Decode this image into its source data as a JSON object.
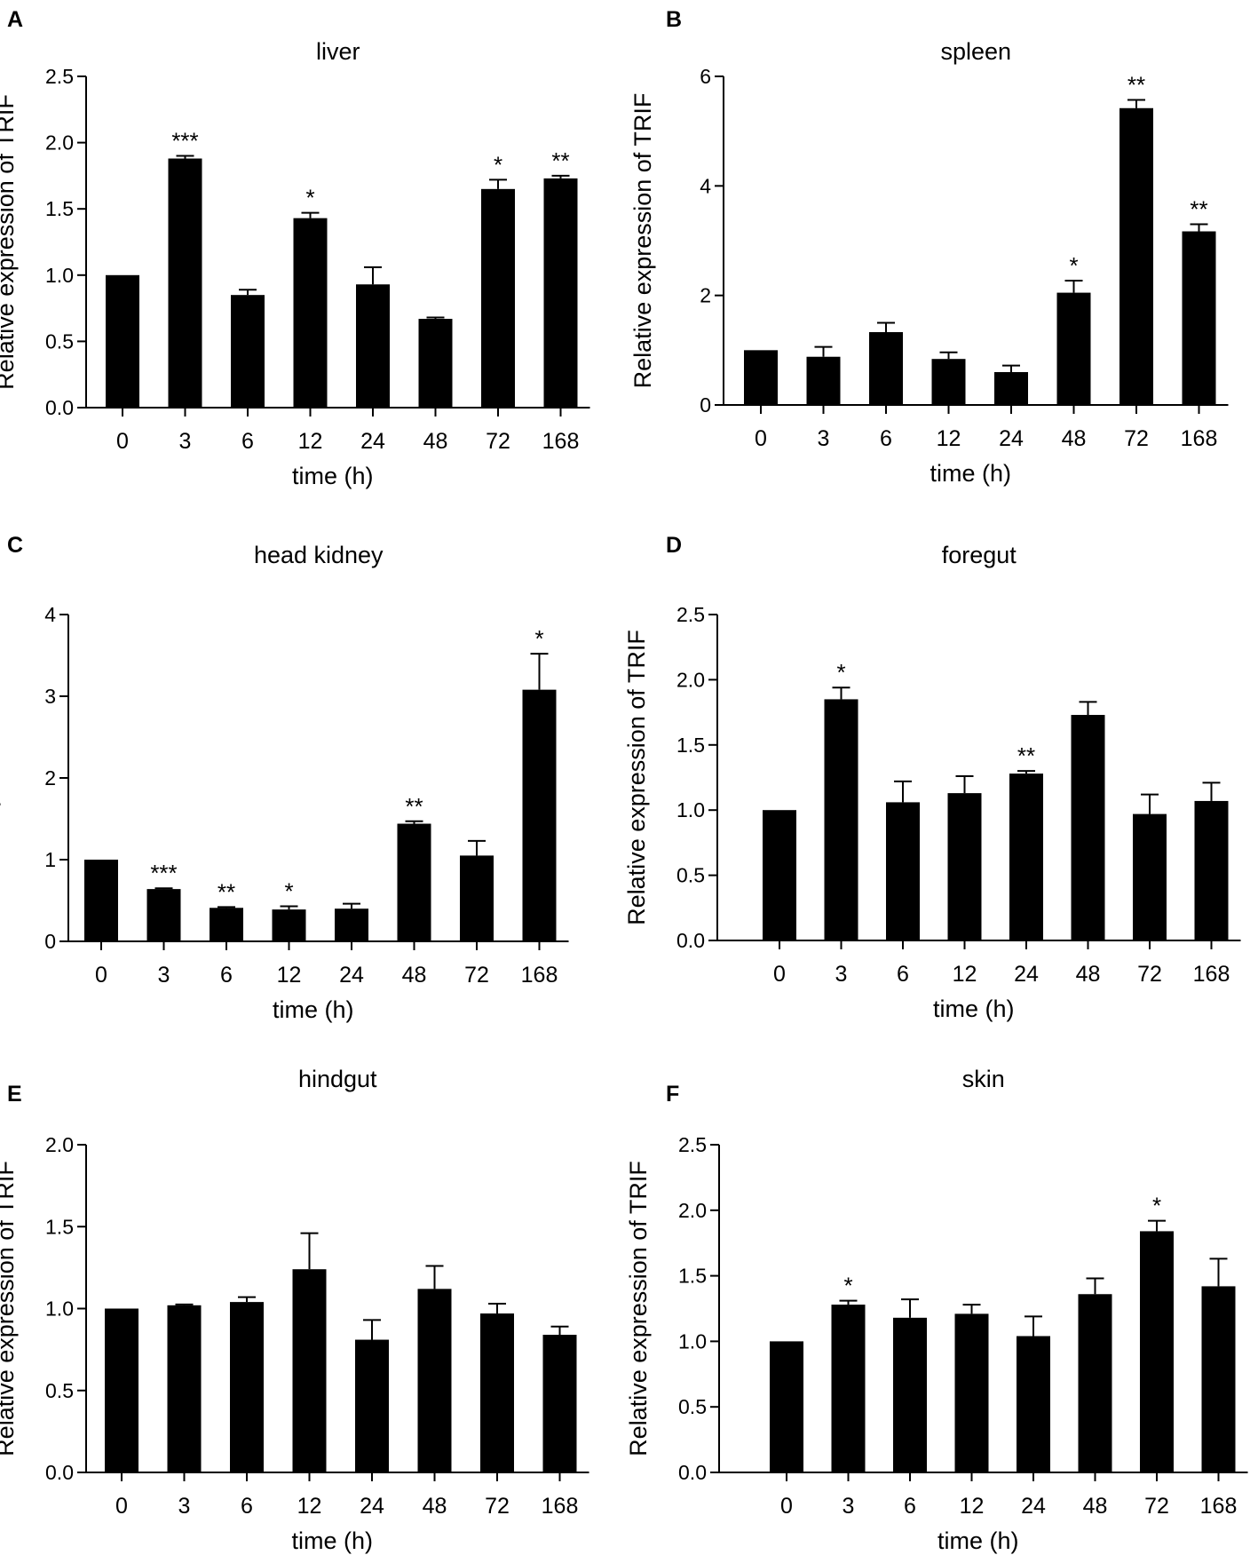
{
  "figure": {
    "bar_color": "#000000",
    "axis_color": "#000000",
    "background": "#ffffff"
  },
  "chart_data": [
    {
      "panel_label": "A",
      "type": "bar",
      "title": "liver",
      "xlabel": "time (h)",
      "ylabel": "Relative expression of TRIF",
      "categories": [
        "0",
        "3",
        "6",
        "12",
        "24",
        "48",
        "72",
        "168"
      ],
      "values": [
        1.0,
        1.88,
        0.85,
        1.43,
        0.93,
        0.67,
        1.65,
        1.73
      ],
      "errors": [
        0,
        0.02,
        0.04,
        0.04,
        0.13,
        0.01,
        0.07,
        0.02
      ],
      "significance": [
        "",
        "***",
        "",
        "*",
        "",
        "",
        "*",
        "**"
      ],
      "ylim": [
        0,
        2.5
      ],
      "ticks": [
        0.0,
        0.5,
        1.0,
        1.5,
        2.0,
        2.5
      ],
      "tick_labels": [
        "0.0",
        "0.5",
        "1.0",
        "1.5",
        "2.0",
        "2.5"
      ]
    },
    {
      "panel_label": "B",
      "type": "bar",
      "title": "spleen",
      "xlabel": "time (h)",
      "ylabel": "Relative expression of TRIF",
      "categories": [
        "0",
        "3",
        "6",
        "12",
        "24",
        "48",
        "72",
        "168"
      ],
      "values": [
        1.0,
        0.88,
        1.33,
        0.84,
        0.6,
        2.05,
        5.42,
        3.17
      ],
      "errors": [
        0,
        0.18,
        0.17,
        0.12,
        0.12,
        0.22,
        0.15,
        0.13
      ],
      "significance": [
        "",
        "",
        "",
        "",
        "",
        "*",
        "**",
        "**"
      ],
      "ylim": [
        0,
        6
      ],
      "ticks": [
        0,
        2,
        4,
        6
      ],
      "tick_labels": [
        "0",
        "2",
        "4",
        "6"
      ]
    },
    {
      "panel_label": "C",
      "type": "bar",
      "title": "head kidney",
      "xlabel": "time (h)",
      "ylabel": "Relative expression of TRIF",
      "categories": [
        "0",
        "3",
        "6",
        "12",
        "24",
        "48",
        "72",
        "168"
      ],
      "values": [
        1.0,
        0.64,
        0.41,
        0.39,
        0.4,
        1.44,
        1.05,
        3.08
      ],
      "errors": [
        0,
        0.01,
        0.01,
        0.04,
        0.06,
        0.03,
        0.18,
        0.44
      ],
      "significance": [
        "",
        "***",
        "**",
        "*",
        "",
        "**",
        "",
        "*"
      ],
      "ylim": [
        0,
        4
      ],
      "ticks": [
        0,
        1,
        2,
        3,
        4
      ],
      "tick_labels": [
        "0",
        "1",
        "2",
        "3",
        "4"
      ]
    },
    {
      "panel_label": "D",
      "type": "bar",
      "title": "foregut",
      "xlabel": "time (h)",
      "ylabel": "Relative expression of TRIF",
      "categories": [
        "0",
        "3",
        "6",
        "12",
        "24",
        "48",
        "72",
        "168"
      ],
      "values": [
        1.0,
        1.85,
        1.06,
        1.13,
        1.28,
        1.73,
        0.97,
        1.07
      ],
      "errors": [
        0,
        0.09,
        0.16,
        0.13,
        0.02,
        0.1,
        0.15,
        0.14
      ],
      "significance": [
        "",
        "*",
        "",
        "",
        "**",
        "",
        "",
        ""
      ],
      "ylim": [
        0,
        2.5
      ],
      "ticks": [
        0.0,
        0.5,
        1.0,
        1.5,
        2.0,
        2.5
      ],
      "tick_labels": [
        "0.0",
        "0.5",
        "1.0",
        "1.5",
        "2.0",
        "2.5"
      ]
    },
    {
      "panel_label": "E",
      "type": "bar",
      "title": "hindgut",
      "xlabel": "time (h)",
      "ylabel": "Relative expression of TRIF",
      "categories": [
        "0",
        "3",
        "6",
        "12",
        "24",
        "48",
        "72",
        "168"
      ],
      "values": [
        1.0,
        1.02,
        1.04,
        1.24,
        0.81,
        1.12,
        0.97,
        0.84
      ],
      "errors": [
        0,
        0.005,
        0.03,
        0.22,
        0.12,
        0.14,
        0.06,
        0.05
      ],
      "significance": [
        "",
        "",
        "",
        "",
        "",
        "",
        "",
        ""
      ],
      "ylim": [
        0,
        2.0
      ],
      "ticks": [
        0.0,
        0.5,
        1.0,
        1.5,
        2.0
      ],
      "tick_labels": [
        "0.0",
        "0.5",
        "1.0",
        "1.5",
        "2.0"
      ]
    },
    {
      "panel_label": "F",
      "type": "bar",
      "title": "skin",
      "xlabel": "time (h)",
      "ylabel": "Relative expression of TRIF",
      "categories": [
        "0",
        "3",
        "6",
        "12",
        "24",
        "48",
        "72",
        "168"
      ],
      "values": [
        1.0,
        1.28,
        1.18,
        1.21,
        1.04,
        1.36,
        1.84,
        1.42
      ],
      "errors": [
        0,
        0.03,
        0.14,
        0.07,
        0.15,
        0.12,
        0.08,
        0.21
      ],
      "significance": [
        "",
        "*",
        "",
        "",
        "",
        "",
        "*",
        ""
      ],
      "ylim": [
        0,
        2.5
      ],
      "ticks": [
        0.0,
        0.5,
        1.0,
        1.5,
        2.0,
        2.5
      ],
      "tick_labels": [
        "0.0",
        "0.5",
        "1.0",
        "1.5",
        "2.0",
        "2.5"
      ]
    }
  ]
}
